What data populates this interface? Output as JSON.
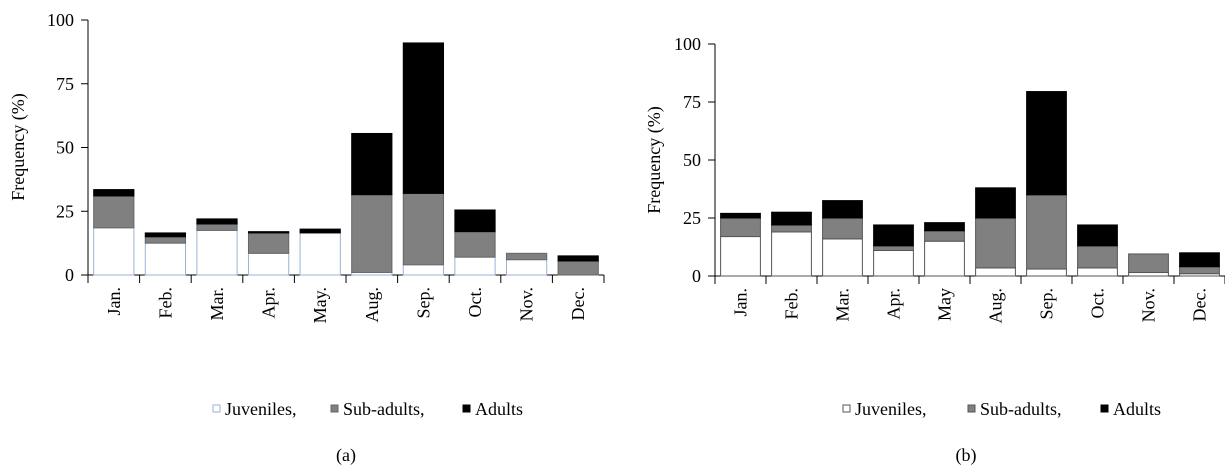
{
  "chart_data": [
    {
      "type": "bar",
      "stacked": true,
      "caption": "(a)",
      "ylabel": "Frequency (%)",
      "ylim": [
        0,
        100
      ],
      "yticks": [
        0,
        25,
        50,
        75,
        100
      ],
      "grid": false,
      "legend_position": "bottom",
      "categories": [
        "Jan.",
        "Feb.",
        "Mar.",
        "Apr.",
        "May.",
        "Aug.",
        "Sep.",
        "Oct.",
        "Nov.",
        "Dec."
      ],
      "series": [
        {
          "name": "Juveniles,",
          "color": "#ffffff",
          "stroke": "#9bb3d6",
          "values": [
            18.5,
            12.5,
            17.5,
            8.5,
            16.5,
            1,
            4,
            7,
            6,
            0
          ]
        },
        {
          "name": "Sub-adults,",
          "color": "#808080",
          "stroke": "#666666",
          "values": [
            12.5,
            2.5,
            2.5,
            8,
            0,
            30.5,
            28,
            10,
            2.5,
            5.5
          ]
        },
        {
          "name": "Adults",
          "color": "#000000",
          "stroke": "#000000",
          "values": [
            2.5,
            1.5,
            2,
            0.5,
            1.5,
            24,
            59,
            8.5,
            0,
            2
          ]
        }
      ]
    },
    {
      "type": "bar",
      "stacked": true,
      "caption": "(b)",
      "ylabel": "Frequency (%)",
      "ylim": [
        0,
        100
      ],
      "yticks": [
        0,
        25,
        50,
        75,
        100
      ],
      "grid": false,
      "legend_position": "bottom",
      "categories": [
        "Jan.",
        "Feb.",
        "Mar.",
        "Apr.",
        "May",
        "Aug.",
        "Sep.",
        "Oct.",
        "Nov.",
        "Dec."
      ],
      "series": [
        {
          "name": "Juveniles,",
          "color": "#ffffff",
          "stroke": "#555555",
          "values": [
            17,
            19,
            16,
            11,
            15,
            3.5,
            3,
            3.5,
            1.5,
            1
          ]
        },
        {
          "name": "Sub-adults,",
          "color": "#808080",
          "stroke": "#555555",
          "values": [
            8,
            3,
            9,
            2,
            4.5,
            21.5,
            32,
            9.5,
            8,
            3
          ]
        },
        {
          "name": "Adults",
          "color": "#000000",
          "stroke": "#000000",
          "values": [
            2,
            5.5,
            7.5,
            9,
            3.5,
            13,
            44.5,
            9,
            0,
            6
          ]
        }
      ]
    }
  ]
}
